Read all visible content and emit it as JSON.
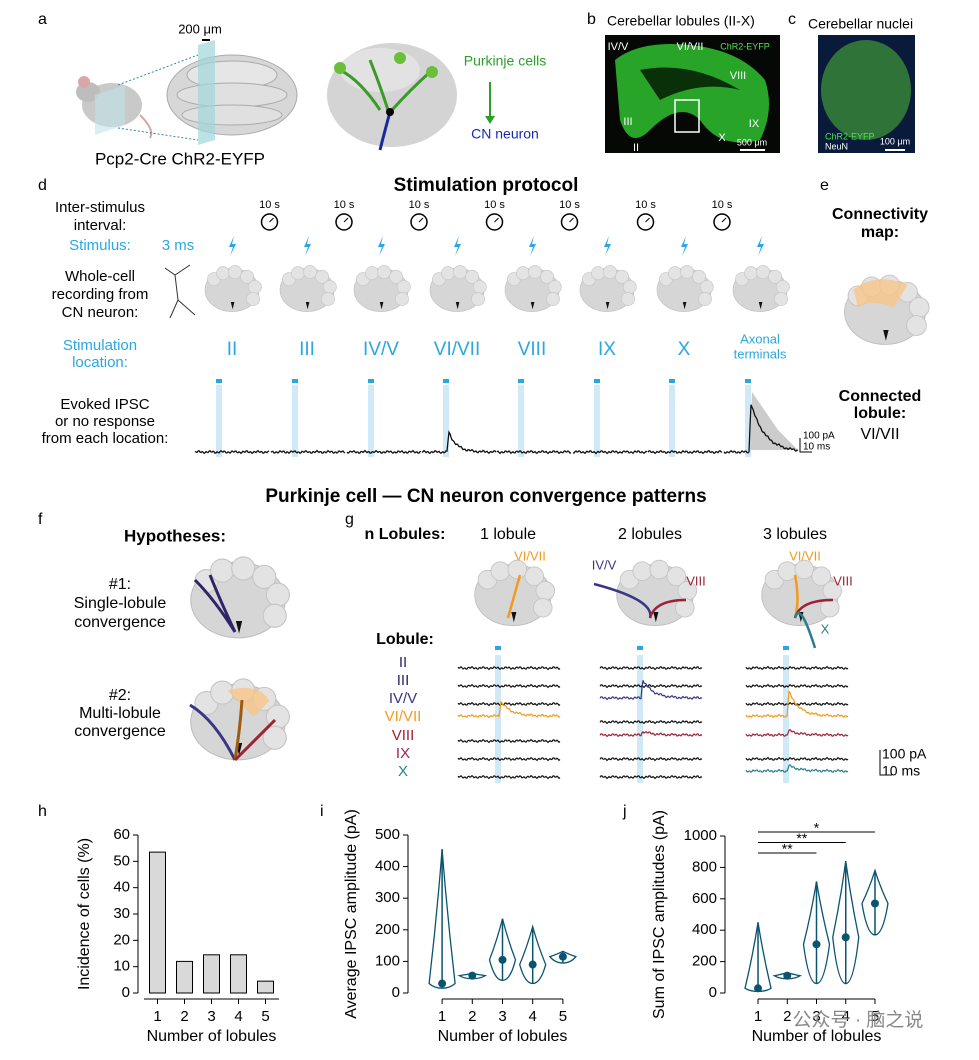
{
  "panel_labels": [
    "a",
    "b",
    "c",
    "d",
    "e",
    "f",
    "g",
    "h",
    "i",
    "j"
  ],
  "a": {
    "scale": "200 μm",
    "genotype": "Pcp2-Cre ChR2-EYFP",
    "source": "Purkinje cells",
    "target": "CN neuron"
  },
  "b": {
    "title": "Cerebellar lobules (II-X)",
    "lobules": [
      "IV/V",
      "VI/VII",
      "VIII",
      "III",
      "II",
      "X",
      "IX"
    ],
    "stain": "ChR2-EYFP",
    "scale": "500 μm"
  },
  "c": {
    "title": "Cerebellar nuclei",
    "stains": [
      "ChR2-EYFP",
      "NeuN"
    ],
    "scale": "100 μm"
  },
  "d": {
    "title": "Stimulation protocol",
    "interval_label": [
      "Inter-stimulus",
      "interval:"
    ],
    "intervals": [
      "10 s",
      "10 s",
      "10 s",
      "10 s",
      "10 s",
      "10 s",
      "10 s"
    ],
    "stimulus_label": "Stimulus:",
    "duration": "3 ms",
    "recording_label": [
      "Whole-cell",
      "recording from",
      "CN neuron:"
    ],
    "location_label": [
      "Stimulation",
      "location:"
    ],
    "locations": [
      "II",
      "III",
      "IV/V",
      "VI/VII",
      "VIII",
      "IX",
      "X"
    ],
    "axonal": [
      "Axonal",
      "terminals"
    ],
    "response_label": [
      "Evoked IPSC",
      "or no response",
      "from each location:"
    ],
    "scale": [
      "100 pA",
      "10 ms"
    ]
  },
  "e": {
    "map_label": [
      "Connectivity",
      "map:"
    ],
    "connected_label": [
      "Connected",
      "lobule:"
    ],
    "connected": "VI/VII"
  },
  "heading": "Purkinje cell — CN neuron convergence patterns",
  "f": {
    "title": "Hypotheses:",
    "h1": [
      "#1:",
      "Single-lobule",
      "convergence"
    ],
    "h2": [
      "#2:",
      "Multi-lobule",
      "convergence"
    ]
  },
  "g": {
    "n_label": "n Lobules:",
    "columns": [
      "1 lobule",
      "2 lobules",
      "3 lobules"
    ],
    "map_labels": [
      [
        "VI/VII"
      ],
      [
        "IV/V",
        "VIII"
      ],
      [
        "VI/VII",
        "VIII",
        "X"
      ]
    ],
    "lobule_label": "Lobule:",
    "lobules": [
      {
        "name": "II",
        "color": "#2e2466"
      },
      {
        "name": "III",
        "color": "#2e2466"
      },
      {
        "name": "IV/V",
        "color": "#3a3585"
      },
      {
        "name": "VI/VII",
        "color": "#f39a1e"
      },
      {
        "name": "VIII",
        "color": "#9b2335"
      },
      {
        "name": "IX",
        "color": "#a3234f"
      },
      {
        "name": "X",
        "color": "#2a7f8c"
      }
    ],
    "scale": [
      "100 pA",
      "10 ms"
    ]
  },
  "chart_data": [
    {
      "type": "bar",
      "x_label": "Number of lobules",
      "y_label": "Incidence of cells (%)",
      "categories": [
        "1",
        "2",
        "3",
        "4",
        "5"
      ],
      "values": [
        53.5,
        12,
        14.5,
        14.5,
        4.5
      ],
      "color": "#d9d9d9",
      "ylim": [
        0,
        60
      ],
      "yticks": [
        0,
        10,
        20,
        30,
        40,
        50,
        60
      ]
    },
    {
      "type": "violin",
      "x_label": "Number of lobules",
      "y_label": "Average IPSC amplitude (pA)",
      "x": [
        1,
        2,
        3,
        4,
        5
      ],
      "medians": [
        30,
        55,
        105,
        90,
        115
      ],
      "mins": [
        15,
        45,
        40,
        30,
        95
      ],
      "maxs": [
        455,
        62,
        235,
        210,
        132
      ],
      "color": "#0b5470",
      "xlim": [
        0.5,
        5.5
      ],
      "xticks": [
        1,
        2,
        3,
        4,
        5
      ],
      "ylim": [
        0,
        500
      ],
      "yticks": [
        0,
        100,
        200,
        300,
        400,
        500
      ]
    },
    {
      "type": "violin",
      "x_label": "Number of lobules",
      "y_label": "Sum of IPSC amplitudes (pA)",
      "x": [
        1,
        2,
        3,
        4,
        5
      ],
      "medians": [
        30,
        110,
        310,
        355,
        570
      ],
      "mins": [
        10,
        90,
        60,
        60,
        370
      ],
      "maxs": [
        450,
        130,
        710,
        840,
        780
      ],
      "color": "#0b5470",
      "xlim": [
        0.5,
        5.5
      ],
      "xticks": [
        1,
        2,
        3,
        4,
        5
      ],
      "ylim": [
        0,
        1000
      ],
      "yticks": [
        0,
        200,
        400,
        600,
        800,
        1000
      ],
      "comparisons": [
        {
          "label": "*",
          "groups": [
            1,
            5
          ]
        },
        {
          "label": "**",
          "groups": [
            1,
            4
          ]
        },
        {
          "label": "**",
          "groups": [
            1,
            3
          ]
        }
      ]
    }
  ],
  "watermark": "公众号 · 脑之说"
}
